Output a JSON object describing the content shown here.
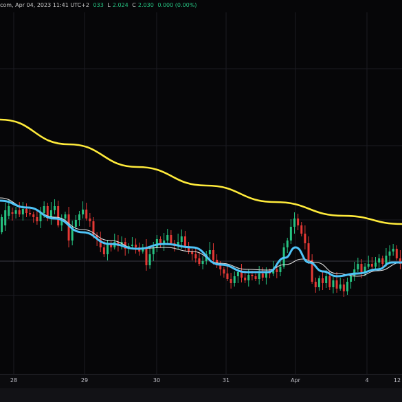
{
  "header": {
    "title_fragment": "com, Apr 04, 2023 11:41 UTC+2",
    "high": "033",
    "low_prefix": "L",
    "low": "2.024",
    "close_prefix": "C",
    "close": "2.030",
    "change": "0.000 (0.00%)"
  },
  "colors": {
    "background": "#060608",
    "grid": "#1c1c22",
    "up_candle": "#26c281",
    "down_candle": "#e53935",
    "ma_long": "#ffeb3b",
    "ma_mid": "#4fc3f7",
    "ma_short": "#e0e0e0"
  },
  "chart_data": {
    "type": "candlestick",
    "x_ticks": [
      "28",
      "29",
      "30",
      "31",
      "Apr",
      "4",
      "12"
    ],
    "ylim": [
      0,
      585
    ],
    "candles": [
      [
        338,
        316
      ],
      [
        328,
        306
      ],
      [
        314,
        300
      ],
      [
        309,
        311
      ],
      [
        311,
        306
      ],
      [
        306,
        312
      ],
      [
        312,
        304
      ],
      [
        304,
        310
      ],
      [
        310,
        312
      ],
      [
        312,
        316
      ],
      [
        316,
        322
      ],
      [
        322,
        310
      ],
      [
        310,
        300
      ],
      [
        300,
        318
      ],
      [
        318,
        306
      ],
      [
        306,
        300
      ],
      [
        300,
        328
      ],
      [
        328,
        318
      ],
      [
        318,
        312
      ],
      [
        312,
        350
      ],
      [
        350,
        330
      ],
      [
        330,
        320
      ],
      [
        320,
        312
      ],
      [
        312,
        305
      ],
      [
        305,
        318
      ],
      [
        318,
        322
      ],
      [
        322,
        342
      ],
      [
        342,
        348
      ],
      [
        348,
        360
      ],
      [
        360,
        370
      ],
      [
        370,
        356
      ],
      [
        356,
        360
      ],
      [
        360,
        352
      ],
      [
        352,
        358
      ],
      [
        358,
        352
      ],
      [
        352,
        362
      ],
      [
        362,
        358
      ],
      [
        358,
        356
      ],
      [
        356,
        360
      ],
      [
        360,
        366
      ],
      [
        366,
        360
      ],
      [
        360,
        386
      ],
      [
        386,
        370
      ],
      [
        370,
        360
      ],
      [
        360,
        348
      ],
      [
        348,
        356
      ],
      [
        356,
        350
      ],
      [
        350,
        342
      ],
      [
        342,
        354
      ],
      [
        354,
        358
      ],
      [
        358,
        352
      ],
      [
        352,
        344
      ],
      [
        344,
        358
      ],
      [
        358,
        366
      ],
      [
        366,
        370
      ],
      [
        370,
        376
      ],
      [
        376,
        384
      ],
      [
        384,
        380
      ],
      [
        380,
        370
      ],
      [
        370,
        364
      ],
      [
        364,
        378
      ],
      [
        378,
        386
      ],
      [
        386,
        392
      ],
      [
        392,
        398
      ],
      [
        398,
        406
      ],
      [
        406,
        412
      ],
      [
        412,
        402
      ],
      [
        402,
        396
      ],
      [
        396,
        404
      ],
      [
        404,
        408
      ],
      [
        408,
        400
      ],
      [
        400,
        402
      ],
      [
        402,
        406
      ],
      [
        406,
        398
      ],
      [
        398,
        404
      ],
      [
        404,
        396
      ],
      [
        396,
        398
      ],
      [
        398,
        392
      ],
      [
        392,
        396
      ],
      [
        396,
        388
      ],
      [
        388,
        360
      ],
      [
        360,
        350
      ],
      [
        350,
        330
      ],
      [
        330,
        318
      ],
      [
        318,
        328
      ],
      [
        328,
        340
      ],
      [
        340,
        354
      ],
      [
        354,
        378
      ],
      [
        378,
        410
      ],
      [
        410,
        418
      ],
      [
        418,
        405
      ],
      [
        405,
        412
      ],
      [
        412,
        402
      ],
      [
        402,
        418
      ],
      [
        418,
        408
      ],
      [
        408,
        420
      ],
      [
        420,
        414
      ],
      [
        414,
        424
      ],
      [
        424,
        410
      ],
      [
        410,
        402
      ],
      [
        402,
        392
      ],
      [
        392,
        384
      ],
      [
        384,
        396
      ],
      [
        396,
        388
      ],
      [
        388,
        384
      ],
      [
        384,
        388
      ],
      [
        388,
        382
      ],
      [
        382,
        376
      ],
      [
        376,
        384
      ],
      [
        384,
        372
      ],
      [
        372,
        366
      ],
      [
        366,
        362
      ],
      [
        362,
        376
      ],
      [
        376,
        384
      ]
    ],
    "ma_long": [
      [
        0,
        174
      ],
      [
        100,
        210
      ],
      [
        200,
        243
      ],
      [
        300,
        270
      ],
      [
        400,
        294
      ],
      [
        500,
        314
      ],
      [
        585,
        326
      ]
    ],
    "ma_mid": [
      [
        0,
        292
      ],
      [
        40,
        302
      ],
      [
        80,
        318
      ],
      [
        120,
        338
      ],
      [
        160,
        355
      ],
      [
        200,
        362
      ],
      [
        240,
        355
      ],
      [
        280,
        360
      ],
      [
        320,
        385
      ],
      [
        360,
        396
      ],
      [
        390,
        396
      ],
      [
        415,
        375
      ],
      [
        430,
        360
      ],
      [
        450,
        382
      ],
      [
        470,
        395
      ],
      [
        490,
        402
      ],
      [
        520,
        398
      ],
      [
        550,
        392
      ],
      [
        570,
        382
      ],
      [
        585,
        382
      ]
    ],
    "ma_short": [
      [
        0,
        288
      ],
      [
        40,
        302
      ],
      [
        80,
        316
      ],
      [
        120,
        334
      ],
      [
        160,
        350
      ],
      [
        200,
        362
      ],
      [
        240,
        360
      ],
      [
        280,
        366
      ],
      [
        320,
        383
      ],
      [
        360,
        392
      ],
      [
        390,
        393
      ],
      [
        415,
        385
      ],
      [
        440,
        377
      ],
      [
        460,
        382
      ],
      [
        490,
        398
      ],
      [
        520,
        402
      ],
      [
        550,
        394
      ],
      [
        585,
        382
      ]
    ]
  }
}
